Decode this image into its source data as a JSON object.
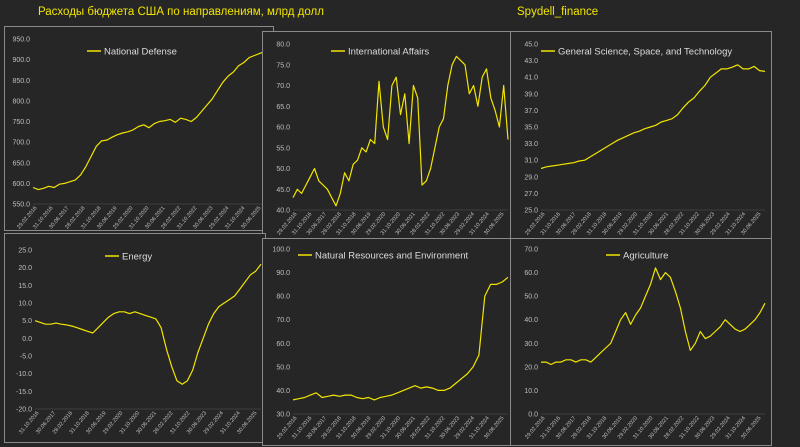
{
  "header": {
    "title": "Расходы бюджета США по направлениям, млрд долл",
    "source": "Spydell_finance"
  },
  "colors": {
    "background": "#262626",
    "line": "#f2e500",
    "text": "#bfbfbf",
    "frame": "#8a8a8a"
  },
  "x_tick_labels_row1": [
    "29.02.2016",
    "31.10.2016",
    "30.06.2017",
    "28.02.2018",
    "31.10.2018",
    "30.06.2019",
    "29.02.2020",
    "31.10.2020",
    "30.06.2021",
    "28.02.2022",
    "31.10.2022",
    "30.06.2023",
    "29.02.2024",
    "31.10.2024",
    "30.06.2025"
  ],
  "x_tick_labels_row2": [
    "29.02.2016",
    "31.10.2016",
    "30.06.2017",
    "28.02.2018",
    "31.10.2018",
    "30.06.2019",
    "29.02.2020",
    "31.10.2020",
    "30.06.2021",
    "28.02.2022",
    "31.10.2022",
    "30.06.2023",
    "29.02.2024",
    "31.10.2024",
    "30.06.2025"
  ],
  "chart_data": [
    {
      "type": "line",
      "series": [
        {
          "name": "National Defense",
          "values": [
            590,
            585,
            588,
            593,
            590,
            598,
            600,
            604,
            608,
            620,
            640,
            665,
            690,
            703,
            705,
            712,
            718,
            722,
            725,
            730,
            738,
            742,
            735,
            745,
            750,
            752,
            755,
            748,
            758,
            755,
            750,
            760,
            775,
            790,
            805,
            825,
            845,
            860,
            870,
            885,
            893,
            905,
            910,
            915,
            920
          ]
        }
      ],
      "ylim": [
        550,
        950
      ],
      "yticks": [
        "550.0",
        "600.0",
        "650.0",
        "700.0",
        "750.0",
        "800.0",
        "850.0",
        "900.0",
        "950.0"
      ],
      "x_ticks": [
        "29.02.2016",
        "31.10.2016",
        "30.06.2017",
        "28.02.2018",
        "31.10.2018",
        "30.06.2019",
        "29.02.2020",
        "31.10.2020",
        "30.06.2021",
        "28.02.2022",
        "31.10.2022",
        "30.06.2023",
        "29.02.2024",
        "31.10.2024",
        "30.06.2025"
      ]
    },
    {
      "type": "line",
      "series": [
        {
          "name": "International Affairs",
          "values": [
            43,
            45,
            44,
            46,
            48,
            50,
            47,
            46,
            45,
            43,
            41,
            44,
            49,
            47,
            51,
            52,
            55,
            54,
            57,
            56,
            71,
            60,
            57,
            70,
            72,
            63,
            68,
            56,
            70,
            67,
            46,
            47,
            50,
            55,
            60,
            62,
            70,
            75,
            77,
            76,
            75,
            68,
            70,
            65,
            72,
            74,
            67,
            64,
            60,
            70,
            57
          ]
        }
      ],
      "ylim": [
        40,
        80
      ],
      "yticks": [
        "40.0",
        "45.0",
        "50.0",
        "55.0",
        "60.0",
        "65.0",
        "70.0",
        "75.0",
        "80.0"
      ],
      "x_ticks": [
        "29.02.2016",
        "31.10.2016",
        "30.06.2017",
        "28.02.2018",
        "31.10.2018",
        "30.06.2019",
        "29.02.2020",
        "31.10.2020",
        "30.06.2021",
        "28.02.2022",
        "31.10.2022",
        "30.06.2023",
        "29.02.2024",
        "31.10.2024",
        "30.06.2025"
      ]
    },
    {
      "type": "line",
      "series": [
        {
          "name": "General Science, Space, and Technology",
          "values": [
            30,
            30.2,
            30.3,
            30.4,
            30.5,
            30.6,
            30.7,
            30.9,
            31,
            31.4,
            31.8,
            32.2,
            32.6,
            33,
            33.4,
            33.7,
            34,
            34.3,
            34.5,
            34.8,
            35,
            35.2,
            35.6,
            35.8,
            36,
            36.5,
            37.3,
            38,
            38.5,
            39.3,
            40,
            41,
            41.5,
            42,
            42,
            42.2,
            42.5,
            42,
            42,
            42.3,
            41.8,
            41.7
          ]
        }
      ],
      "ylim": [
        25,
        45
      ],
      "yticks": [
        "25.0",
        "27.0",
        "29.0",
        "31.0",
        "33.0",
        "35.0",
        "37.0",
        "39.0",
        "41.0",
        "43.0",
        "45.0"
      ],
      "x_ticks": [
        "29.02.2016",
        "31.10.2016",
        "30.06.2017",
        "28.02.2018",
        "31.10.2018",
        "30.06.2019",
        "29.02.2020",
        "31.10.2020",
        "30.06.2021",
        "28.02.2022",
        "31.10.2022",
        "30.06.2023",
        "29.02.2024",
        "31.10.2024",
        "30.06.2025"
      ]
    },
    {
      "type": "line",
      "series": [
        {
          "name": "Energy",
          "values": [
            5,
            4.5,
            4,
            4,
            4.3,
            4,
            3.8,
            3.5,
            3,
            2.5,
            2,
            1.5,
            3,
            4.5,
            6,
            7,
            7.5,
            7.5,
            7,
            7.5,
            7,
            6.5,
            6,
            5.5,
            3,
            -3,
            -8,
            -12,
            -13,
            -12,
            -9,
            -4,
            0,
            4,
            7,
            9,
            10,
            11,
            12,
            14,
            16,
            18,
            19,
            21
          ]
        }
      ],
      "ylim": [
        -20,
        25
      ],
      "yticks": [
        "-20.0",
        "-15.0",
        "-10.0",
        "-5.0",
        "0.0",
        "5.0",
        "10.0",
        "15.0",
        "20.0",
        "25.0"
      ],
      "x_ticks": [
        "31.10.2016",
        "30.06.2017",
        "28.02.2018",
        "31.10.2018",
        "30.06.2019",
        "29.02.2020",
        "31.10.2020",
        "30.06.2021",
        "28.02.2022",
        "31.10.2022",
        "30.06.2023",
        "29.02.2024",
        "31.10.2024",
        "30.06.2025"
      ]
    },
    {
      "type": "line",
      "series": [
        {
          "name": "Natural Resources and Environment",
          "values": [
            36,
            36.5,
            37,
            38,
            39,
            37,
            37.5,
            38,
            37.5,
            38,
            38,
            37,
            36.5,
            37,
            36,
            37,
            37.5,
            38,
            39,
            40,
            41,
            42,
            41,
            41.5,
            41,
            40,
            40,
            41,
            43,
            45,
            47,
            50,
            55,
            80,
            85,
            85,
            86,
            88
          ]
        }
      ],
      "ylim": [
        30,
        100
      ],
      "yticks": [
        "30.0",
        "40.0",
        "50.0",
        "60.0",
        "70.0",
        "80.0",
        "90.0",
        "100.0"
      ],
      "x_ticks": [
        "29.02.2016",
        "31.10.2016",
        "30.06.2017",
        "28.02.2018",
        "31.10.2018",
        "30.06.2019",
        "29.02.2020",
        "31.10.2020",
        "30.06.2021",
        "28.02.2022",
        "31.10.2022",
        "30.06.2023",
        "29.02.2024",
        "31.10.2024",
        "30.06.2025"
      ]
    },
    {
      "type": "line",
      "series": [
        {
          "name": "Agriculture",
          "values": [
            22,
            22,
            21,
            22,
            22,
            23,
            23,
            22,
            23,
            23,
            22,
            24,
            26,
            28,
            30,
            35,
            40,
            43,
            38,
            42,
            45,
            50,
            55,
            62,
            57,
            60,
            58,
            52,
            45,
            35,
            27,
            30,
            35,
            32,
            33,
            35,
            37,
            40,
            38,
            36,
            35,
            36,
            38,
            40,
            43,
            47
          ]
        }
      ],
      "ylim": [
        0,
        70
      ],
      "yticks": [
        "0.0",
        "10.0",
        "20.0",
        "30.0",
        "40.0",
        "50.0",
        "60.0",
        "70.0"
      ],
      "x_ticks": [
        "29.02.2016",
        "31.10.2016",
        "30.06.2017",
        "28.02.2018",
        "31.10.2018",
        "30.06.2019",
        "29.02.2020",
        "31.10.2020",
        "30.06.2021",
        "28.02.2022",
        "31.10.2022",
        "30.06.2023",
        "29.02.2024",
        "31.10.2024",
        "30.06.2025"
      ]
    }
  ]
}
